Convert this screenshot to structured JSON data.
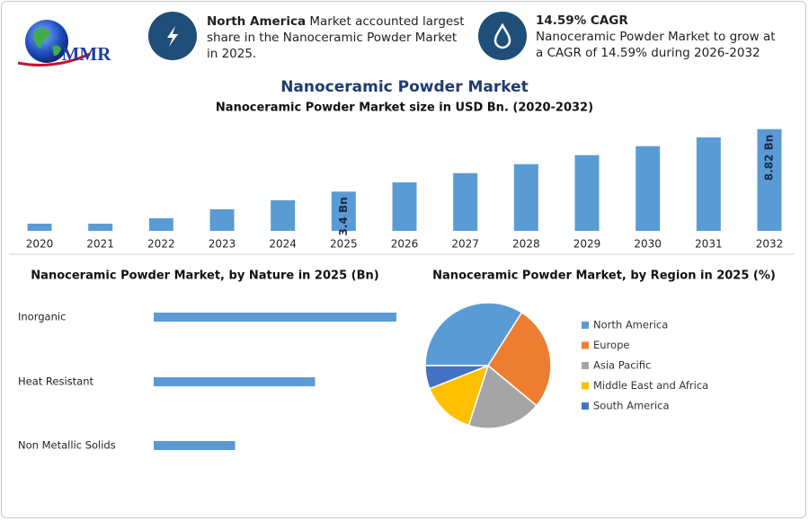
{
  "header": {
    "logo": "MMR",
    "left": {
      "highlight": "North America",
      "text": "Market accounted largest share in the Nanoceramic Powder Market in 2025."
    },
    "right": {
      "highlight": "14.59% CAGR",
      "text": "Nanoceramic Powder Market to grow at a CAGR of 14.59% during 2026-2032"
    }
  },
  "chart_data": [
    {
      "type": "bar",
      "title": "Nanoceramic Powder Market",
      "subtitle": "Nanoceramic Powder Market size in USD Bn. (2020-2032)",
      "categories": [
        "2020",
        "2021",
        "2022",
        "2023",
        "2024",
        "2025",
        "2026",
        "2027",
        "2028",
        "2029",
        "2030",
        "2031",
        "2032"
      ],
      "values": [
        0.62,
        0.62,
        1.09,
        1.87,
        2.65,
        3.4,
        4.2,
        5.0,
        5.78,
        6.56,
        7.34,
        8.1,
        8.82
      ],
      "value_labels": [
        null,
        null,
        null,
        null,
        null,
        "3.4 Bn",
        null,
        null,
        null,
        null,
        null,
        null,
        "8.82 Bn"
      ],
      "color": "#5b9bd5",
      "ylim": [
        0,
        9
      ]
    },
    {
      "type": "hbar",
      "title": "Nanoceramic Powder Market, by Nature in 2025 (Bn)",
      "categories": [
        "Inorganic",
        "Heat Resistant",
        "Non Metallic Solids"
      ],
      "values": [
        1.7,
        1.13,
        0.57
      ],
      "color": "#5b9bd5",
      "xlim": [
        0,
        1.7
      ]
    },
    {
      "type": "pie",
      "title": "Nanoceramic Powder Market, by Region in 2025 (%)",
      "categories": [
        "North America",
        "Europe",
        "Asia Pacific",
        "Middle East and Africa",
        "South America"
      ],
      "values": [
        34,
        27,
        19,
        14,
        6
      ],
      "colors": [
        "#5b9bd5",
        "#ed7d31",
        "#a5a5a5",
        "#ffc000",
        "#4472c4"
      ],
      "legend": "right"
    }
  ]
}
